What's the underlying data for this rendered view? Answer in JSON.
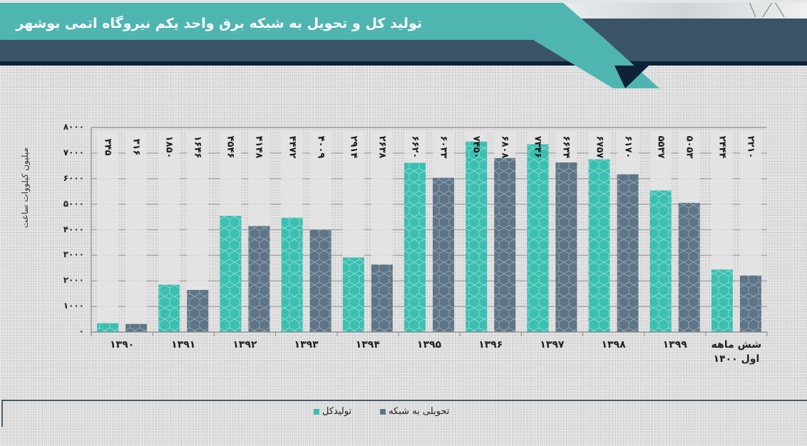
{
  "header": {
    "title": "تولید کل و تحویل به شبکه برق واحد یکم نیروگاه اتمی بوشهر"
  },
  "colors": {
    "teal": "#3bbfb0",
    "slate": "#5e7587",
    "header_teal": "#4fb5b1",
    "header_dark": "#3a5366",
    "header_navy": "#0d2238"
  },
  "chart_data": {
    "type": "bar",
    "title": "تولید کل و تحویل به شبکه برق واحد یکم نیروگاه اتمی بوشهر",
    "xlabel": "",
    "ylabel": "میلیون کیلووات ساعت",
    "ylim": [
      0,
      8000
    ],
    "yticks": [
      0,
      1000,
      2000,
      3000,
      4000,
      5000,
      6000,
      7000,
      8000
    ],
    "ytick_labels": [
      "۰",
      "۱۰۰۰",
      "۲۰۰۰",
      "۳۰۰۰",
      "۴۰۰۰",
      "۵۰۰۰",
      "۶۰۰۰",
      "۷۰۰۰",
      "۸۰۰۰"
    ],
    "grid": true,
    "legend_position": "bottom",
    "categories": [
      "۱۳۹۰",
      "۱۳۹۱",
      "۱۳۹۲",
      "۱۳۹۳",
      "۱۳۹۴",
      "۱۳۹۵",
      "۱۳۹۶",
      "۱۳۹۷",
      "۱۳۹۸",
      "۱۳۹۹",
      "شش ماهه اول ۱۴۰۰"
    ],
    "series": [
      {
        "name": "تولیدکل",
        "color": "#3bbfb0",
        "values": [
          345,
          1850,
          4546,
          4472,
          2914,
          6620,
          7450,
          7346,
          6757,
          5537,
          2444
        ],
        "labels": [
          "۳۴۵",
          "۱۸۵۰",
          "۴۵۴۶",
          "۴۴۷۲",
          "۲۹۱۴",
          "۶۶۲۰",
          "۷۴۵۰",
          "۷۳۴۶",
          "۶۷۵۷",
          "۵۵۳۷",
          "۲۴۴۴"
        ]
      },
      {
        "name": "تحویلی به شبکه",
        "color": "#5e7587",
        "values": [
          316,
          1646,
          4148,
          4009,
          2638,
          6033,
          6808,
          6634,
          6170,
          5053,
          2210
        ],
        "labels": [
          "۳۱۶",
          "۱۶۴۶",
          "۴۱۴۸",
          "۴۰۰۹",
          "۲۶۳۸",
          "۶۰۳۳",
          "۶۸۰۸",
          "۶۶۳۴",
          "۶۱۷۰",
          "۵۰۵۳",
          "۲۲۱۰"
        ]
      }
    ]
  },
  "legend": {
    "items": [
      {
        "label": "تولیدکل",
        "color": "#3bbfb0"
      },
      {
        "label": "تحویلی به شبکه",
        "color": "#5e7587"
      }
    ]
  }
}
